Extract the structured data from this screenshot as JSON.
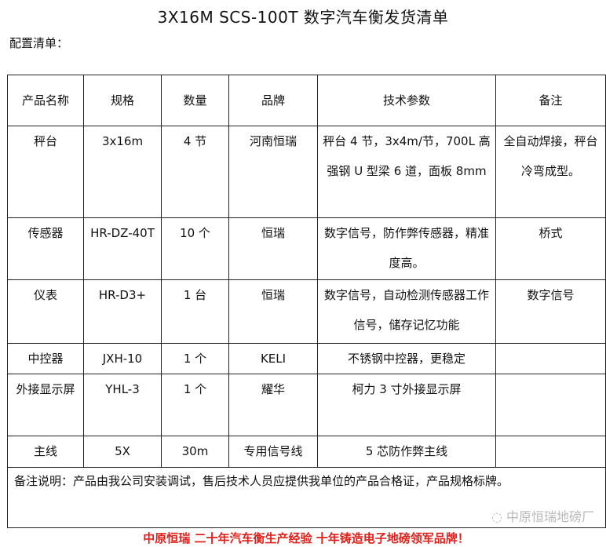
{
  "title": "3X16M SCS-100T 数字汽车衡发货清单",
  "subtitle": "配置清单：",
  "headers": [
    "产品名称",
    "规格",
    "数量",
    "品牌",
    "技术参数",
    "备注"
  ],
  "rows": [
    [
      "秤台",
      "3x16m",
      "4 节",
      "河南恒瑞",
      "秤台 4 节，3x4m/节，700L 高强钢 U 型梁 6 道，面板 8mm",
      "全自动焊接，秤台冷弯成型。"
    ],
    [
      "传感器",
      "HR-DZ-40T",
      "10 个",
      "恒瑞",
      "数字信号，防作弊传感器，精准度高。",
      "桥式"
    ],
    [
      "仪表",
      "HR-D3+",
      "1 台",
      "恒瑞",
      "数字信号，自动检测传感器工作信号，储存记忆功能",
      "数字信号"
    ],
    [
      "中控器",
      "JXH-10",
      "1 个",
      "KELI",
      "不锈钢中控器，更稳定",
      ""
    ],
    [
      "外接显示屏",
      "YHL-3",
      "1 个",
      "耀华",
      "柯力 3 寸外接显示屏",
      ""
    ],
    [
      "主线",
      "5X",
      "30m",
      "专用信号线",
      "5 芯防作弊主线",
      ""
    ]
  ],
  "note": "备注说明：产品由我公司安装调试，售后技术人员应提供我单位的产品合格证，产品规格标牌。",
  "watermark": "中原恒瑞地磅厂",
  "slogan": "中原恒瑞 二十年汽车衡生产经验 十年铸造电子地磅领军品牌！",
  "colors": {
    "slogan": "#e0201a"
  }
}
